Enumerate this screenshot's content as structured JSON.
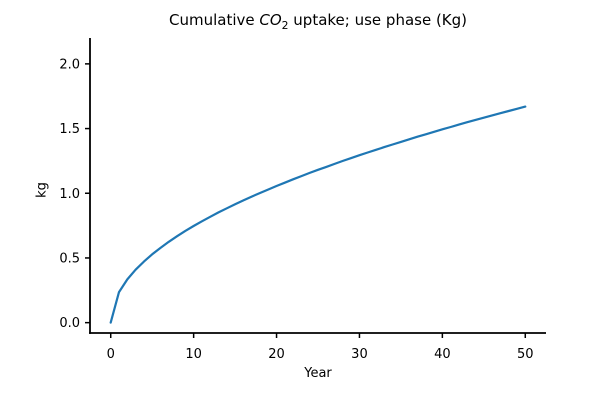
{
  "figure": {
    "background": "#ffffff"
  },
  "chart_data": {
    "type": "line",
    "title": "Cumulative CO2 uptake; use phase (Kg)",
    "title_parts": {
      "prefix": "Cumulative ",
      "italic": "CO",
      "subscript": "2",
      "suffix": " uptake; use phase (Kg)"
    },
    "xlabel": "Year",
    "ylabel": "kg",
    "x_ticks": [
      "0",
      "10",
      "20",
      "30",
      "40",
      "50"
    ],
    "y_ticks": [
      "0.0",
      "0.5",
      "1.0",
      "1.5",
      "2.0"
    ],
    "xlim": [
      -2.5,
      52.5
    ],
    "ylim": [
      -0.08,
      2.2
    ],
    "grid": false,
    "legend": null,
    "line_color": "#1f77b4",
    "axis_color": "#000000",
    "series": [
      {
        "name": "cumulative-co2-uptake",
        "x": [
          0,
          1,
          2,
          3,
          4,
          5,
          6,
          7,
          8,
          9,
          10,
          11,
          12,
          13,
          14,
          15,
          16,
          17,
          18,
          19,
          20,
          21,
          22,
          23,
          24,
          25,
          26,
          27,
          28,
          29,
          30,
          31,
          32,
          33,
          34,
          35,
          36,
          37,
          38,
          39,
          40,
          41,
          42,
          43,
          44,
          45,
          46,
          47,
          48,
          49,
          50
        ],
        "y": [
          0,
          0.236,
          0.334,
          0.409,
          0.472,
          0.528,
          0.578,
          0.625,
          0.668,
          0.709,
          0.747,
          0.783,
          0.818,
          0.852,
          0.884,
          0.915,
          0.945,
          0.974,
          1.002,
          1.029,
          1.056,
          1.082,
          1.108,
          1.133,
          1.157,
          1.181,
          1.204,
          1.227,
          1.25,
          1.272,
          1.294,
          1.315,
          1.336,
          1.357,
          1.377,
          1.397,
          1.417,
          1.437,
          1.456,
          1.475,
          1.494,
          1.512,
          1.531,
          1.549,
          1.567,
          1.584,
          1.602,
          1.619,
          1.636,
          1.653,
          1.67
        ]
      }
    ]
  }
}
